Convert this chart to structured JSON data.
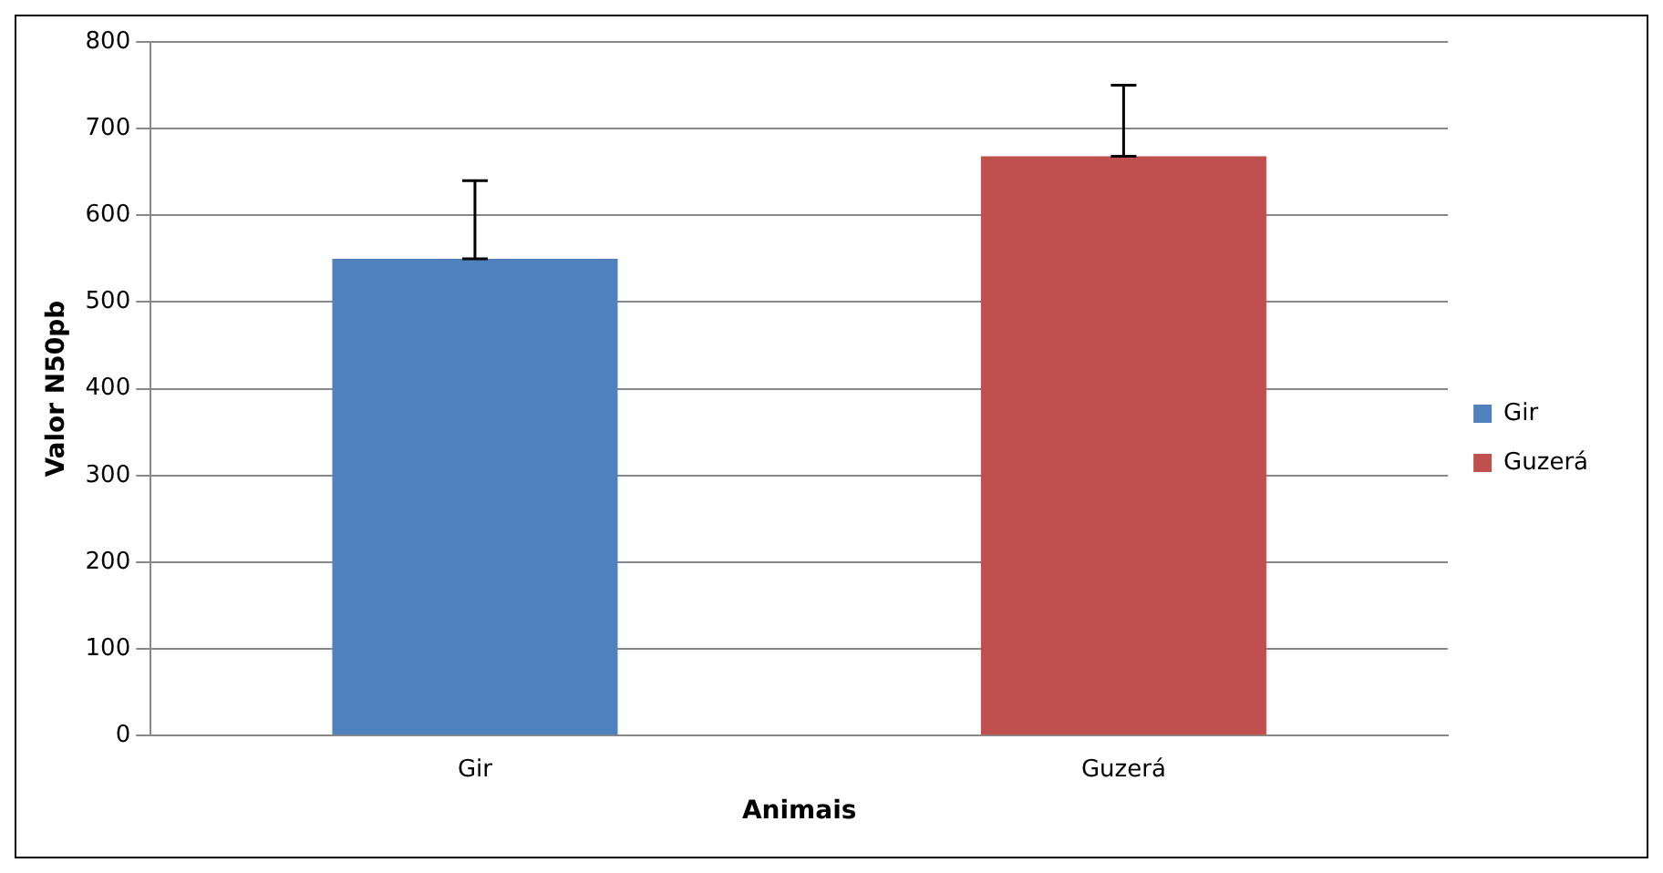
{
  "chart_data": {
    "type": "bar",
    "xlabel": "Animais",
    "ylabel": "Valor N50pb",
    "categories": [
      "Gir",
      "Guzerá"
    ],
    "series": [
      {
        "name": "Gir",
        "color": "#4f81bd",
        "values": [
          550,
          null
        ],
        "errors": [
          [
            550,
            640
          ],
          null
        ]
      },
      {
        "name": "Guzerá",
        "color": "#c0504d",
        "values": [
          null,
          668
        ],
        "errors": [
          null,
          [
            668,
            750
          ]
        ]
      }
    ],
    "ylim": [
      0,
      800
    ],
    "yticks": [
      0,
      100,
      200,
      300,
      400,
      500,
      600,
      700,
      800
    ],
    "grid": "y",
    "legend": "right"
  }
}
